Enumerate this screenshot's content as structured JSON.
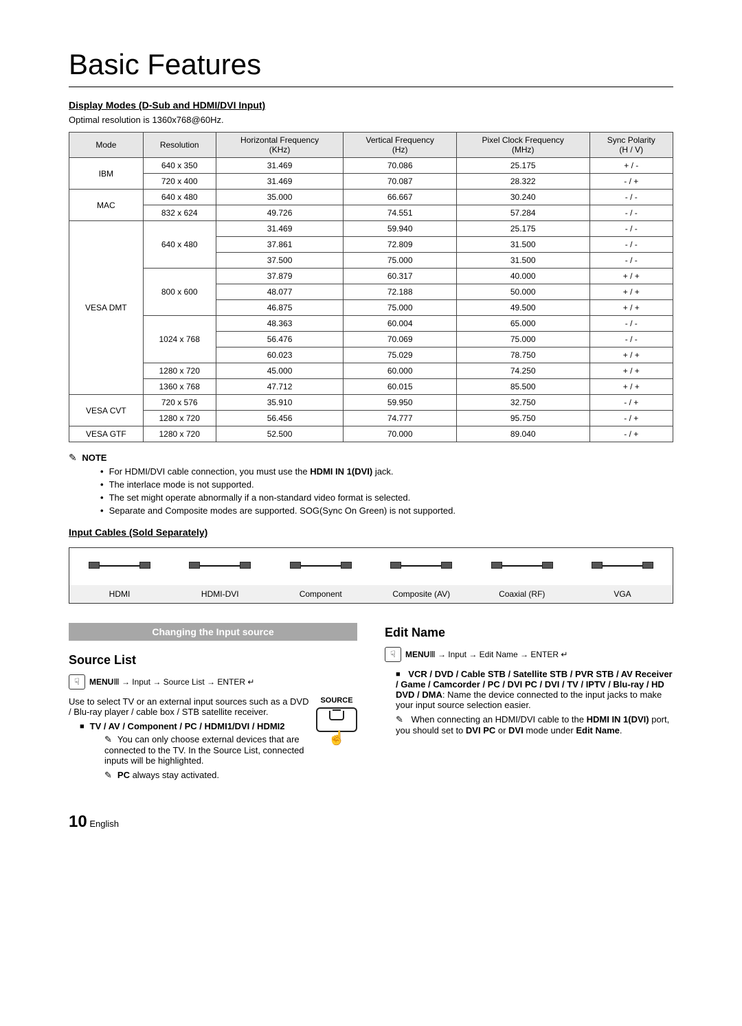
{
  "page": {
    "title": "Basic Features",
    "display_modes_heading": "Display Modes (D-Sub and HDMI/DVI Input)",
    "optimal_res": "Optimal resolution is 1360x768@60Hz.",
    "input_cables_heading": "Input Cables (Sold Separately)",
    "page_number": "10",
    "page_lang": "English"
  },
  "table": {
    "headers": [
      "Mode",
      "Resolution",
      "Horizontal Frequency (KHz)",
      "Vertical Frequency (Hz)",
      "Pixel Clock Frequency (MHz)",
      "Sync Polarity (H / V)"
    ],
    "groups": [
      {
        "mode": "IBM",
        "rows": [
          [
            "640 x 350",
            "31.469",
            "70.086",
            "25.175",
            "+ / -"
          ],
          [
            "720 x 400",
            "31.469",
            "70.087",
            "28.322",
            "- / +"
          ]
        ]
      },
      {
        "mode": "MAC",
        "rows": [
          [
            "640 x 480",
            "35.000",
            "66.667",
            "30.240",
            "- / -"
          ],
          [
            "832 x 624",
            "49.726",
            "74.551",
            "57.284",
            "- / -"
          ]
        ]
      },
      {
        "mode": "VESA DMT",
        "sub": [
          {
            "res": "640 x 480",
            "rows": [
              [
                "31.469",
                "59.940",
                "25.175",
                "- / -"
              ],
              [
                "37.861",
                "72.809",
                "31.500",
                "- / -"
              ],
              [
                "37.500",
                "75.000",
                "31.500",
                "- / -"
              ]
            ]
          },
          {
            "res": "800 x 600",
            "rows": [
              [
                "37.879",
                "60.317",
                "40.000",
                "+ / +"
              ],
              [
                "48.077",
                "72.188",
                "50.000",
                "+ / +"
              ],
              [
                "46.875",
                "75.000",
                "49.500",
                "+ / +"
              ]
            ]
          },
          {
            "res": "1024 x 768",
            "rows": [
              [
                "48.363",
                "60.004",
                "65.000",
                "- / -"
              ],
              [
                "56.476",
                "70.069",
                "75.000",
                "- / -"
              ],
              [
                "60.023",
                "75.029",
                "78.750",
                "+ / +"
              ]
            ]
          },
          {
            "res": "1280 x 720",
            "rows": [
              [
                "45.000",
                "60.000",
                "74.250",
                "+ / +"
              ]
            ]
          },
          {
            "res": "1360 x 768",
            "rows": [
              [
                "47.712",
                "60.015",
                "85.500",
                "+ / +"
              ]
            ]
          }
        ]
      },
      {
        "mode": "VESA CVT",
        "rows": [
          [
            "720 x 576",
            "35.910",
            "59.950",
            "32.750",
            "- / +"
          ],
          [
            "1280 x 720",
            "56.456",
            "74.777",
            "95.750",
            "- / +"
          ]
        ]
      },
      {
        "mode": "VESA GTF",
        "rows": [
          [
            "1280 x 720",
            "52.500",
            "70.000",
            "89.040",
            "- / +"
          ]
        ]
      }
    ]
  },
  "notes": {
    "heading": "NOTE",
    "items": [
      "For HDMI/DVI cable connection, you must use the HDMI IN 1(DVI) jack.",
      "The interlace mode is not supported.",
      "The set might operate abnormally if a non-standard video format is selected.",
      "Separate and Composite modes are supported. SOG(Sync On Green) is not supported."
    ]
  },
  "cables": [
    "HDMI",
    "HDMI-DVI",
    "Component",
    "Composite (AV)",
    "Coaxial (RF)",
    "VGA"
  ],
  "left": {
    "banner": "Changing the Input source",
    "heading": "Source List",
    "path_label": "MENU",
    "path_text": " → Input → Source List → ENTER",
    "desc": "Use to select TV or an external input sources such as a DVD / Blu-ray player / cable box / STB satellite receiver.",
    "source_label": "SOURCE",
    "bullet_bold": "TV / AV / Component / PC / HDMI1/DVI / HDMI2",
    "tip1": "You can only choose external devices that are connected to the TV. In the Source List, connected inputs will be highlighted.",
    "tip2_bold": "PC",
    "tip2_rest": " always stay activated."
  },
  "right": {
    "heading": "Edit Name",
    "path_label": "MENU",
    "path_text": " → Input → Edit Name → ENTER",
    "bullet_bold": "VCR / DVD / Cable STB / Satellite STB / PVR STB / AV Receiver / Game / Camcorder / PC / DVI PC / DVI / TV / IPTV / Blu-ray / HD DVD / DMA",
    "bullet_rest": ": Name the device connected to the input jacks to make your input source selection easier.",
    "tip_pre": "When connecting an HDMI/DVI cable to the ",
    "tip_b1": "HDMI IN 1(DVI)",
    "tip_mid": " port, you should set to ",
    "tip_b2": "DVI PC",
    "tip_or": " or ",
    "tip_b3": "DVI",
    "tip_end": " mode under ",
    "tip_b4": "Edit Name",
    "tip_dot": "."
  }
}
